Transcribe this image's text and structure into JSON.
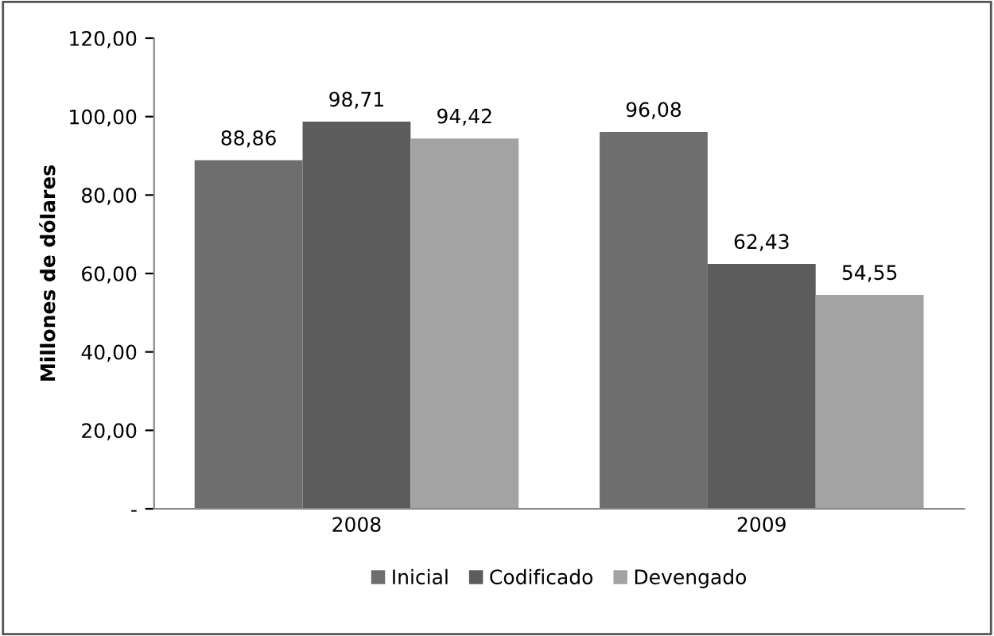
{
  "chart_data": {
    "type": "bar",
    "ylabel": "Millones de dólares",
    "categories": [
      "2008",
      "2009"
    ],
    "series": [
      {
        "name": "Inicial",
        "color": "#6e6e6e",
        "values": [
          88.86,
          96.08
        ],
        "value_labels": [
          "88,86",
          "96,08"
        ]
      },
      {
        "name": "Codificado",
        "color": "#5c5c5c",
        "values": [
          98.71,
          62.43
        ],
        "value_labels": [
          "98,71",
          "62,43"
        ]
      },
      {
        "name": "Devengado",
        "color": "#a3a3a3",
        "values": [
          94.42,
          54.55
        ],
        "value_labels": [
          "94,42",
          "54,55"
        ]
      }
    ],
    "ylim": [
      0,
      120
    ],
    "yticks": [
      {
        "value": 0,
        "label": "-"
      },
      {
        "value": 20,
        "label": "20,00"
      },
      {
        "value": 40,
        "label": "40,00"
      },
      {
        "value": 60,
        "label": "60,00"
      },
      {
        "value": 80,
        "label": "80,00"
      },
      {
        "value": 100,
        "label": "100,00"
      },
      {
        "value": 120,
        "label": "120,00"
      }
    ],
    "grid": false,
    "legend": "bottom"
  }
}
